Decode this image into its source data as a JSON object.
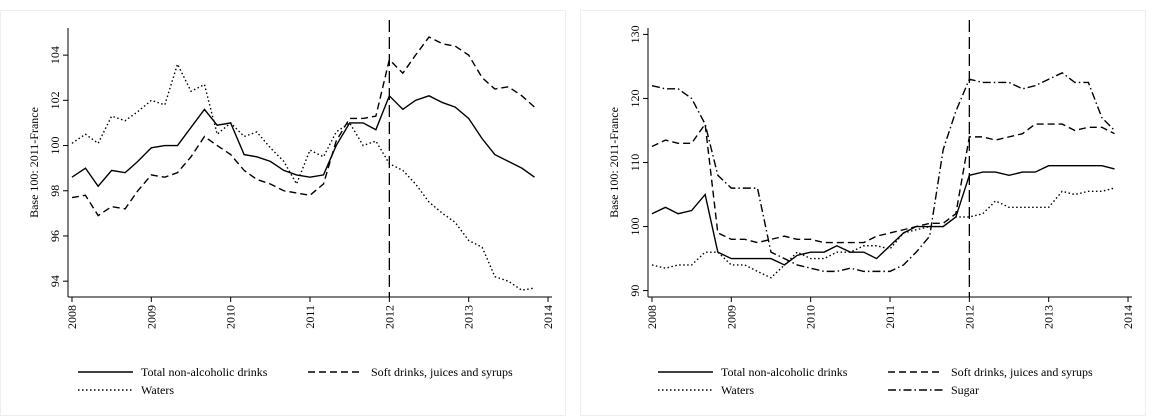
{
  "chart_data": [
    {
      "type": "line",
      "ylabel": "Base 100: 2011-France",
      "x": [
        2008,
        2008.17,
        2008.33,
        2008.5,
        2008.67,
        2008.83,
        2009,
        2009.17,
        2009.33,
        2009.5,
        2009.67,
        2009.83,
        2010,
        2010.17,
        2010.33,
        2010.5,
        2010.67,
        2010.83,
        2011,
        2011.17,
        2011.33,
        2011.5,
        2011.67,
        2011.83,
        2012,
        2012.17,
        2012.33,
        2012.5,
        2012.67,
        2012.83,
        2013,
        2013.17,
        2013.33,
        2013.5,
        2013.67,
        2013.83
      ],
      "xlim": [
        2007.95,
        2014.05
      ],
      "xticks": [
        2008,
        2009,
        2010,
        2011,
        2012,
        2013,
        2014
      ],
      "ylim": [
        93.3,
        105.2
      ],
      "yticks": [
        94,
        96,
        98,
        100,
        102,
        104
      ],
      "vline": 2012,
      "series": [
        {
          "name": "Total non-alcoholic drinks",
          "color": "#000000",
          "style": "solid",
          "values": [
            98.6,
            99.0,
            98.2,
            98.9,
            98.8,
            99.3,
            99.9,
            100.0,
            100.0,
            100.8,
            101.6,
            100.9,
            101.0,
            99.6,
            99.5,
            99.3,
            98.9,
            98.7,
            98.6,
            98.7,
            100.0,
            101.0,
            101.0,
            100.7,
            102.2,
            101.6,
            102.0,
            102.2,
            101.9,
            101.7,
            101.2,
            100.3,
            99.6,
            99.3,
            99.0,
            98.6
          ]
        },
        {
          "name": "Soft drinks, juices and syrups",
          "color": "#000000",
          "style": "dashed",
          "values": [
            97.7,
            97.8,
            96.9,
            97.3,
            97.2,
            98.0,
            98.7,
            98.6,
            98.8,
            99.5,
            100.4,
            100.0,
            99.6,
            98.9,
            98.5,
            98.3,
            98.0,
            97.9,
            97.8,
            98.3,
            100.2,
            101.2,
            101.2,
            101.3,
            103.8,
            103.2,
            104.0,
            104.8,
            104.5,
            104.4,
            104.0,
            103.0,
            102.5,
            102.6,
            102.2,
            101.7
          ]
        },
        {
          "name": "Waters",
          "color": "#000000",
          "style": "dotted",
          "values": [
            100.1,
            100.5,
            100.1,
            101.3,
            101.1,
            101.5,
            102.0,
            101.8,
            103.6,
            102.4,
            102.7,
            100.5,
            101.0,
            100.4,
            100.6,
            99.9,
            99.3,
            98.3,
            99.8,
            99.5,
            100.6,
            101.0,
            100.0,
            100.2,
            99.2,
            98.9,
            98.3,
            97.5,
            97.0,
            96.6,
            95.8,
            95.5,
            94.2,
            94.0,
            93.6,
            93.7
          ]
        }
      ]
    },
    {
      "type": "line",
      "ylabel": "Base 100: 2011-France",
      "x": [
        2008,
        2008.17,
        2008.33,
        2008.5,
        2008.67,
        2008.83,
        2009,
        2009.17,
        2009.33,
        2009.5,
        2009.67,
        2009.83,
        2010,
        2010.17,
        2010.33,
        2010.5,
        2010.67,
        2010.83,
        2011,
        2011.17,
        2011.33,
        2011.5,
        2011.67,
        2011.83,
        2012,
        2012.17,
        2012.33,
        2012.5,
        2012.67,
        2012.83,
        2013,
        2013.17,
        2013.33,
        2013.5,
        2013.67,
        2013.83
      ],
      "xlim": [
        2007.95,
        2014.05
      ],
      "xticks": [
        2008,
        2009,
        2010,
        2011,
        2012,
        2013,
        2014
      ],
      "ylim": [
        89,
        131
      ],
      "yticks": [
        90,
        100,
        110,
        120,
        130
      ],
      "vline": 2012,
      "series": [
        {
          "name": "Total non-alcoholic drinks",
          "color": "#000000",
          "style": "solid",
          "values": [
            102,
            103,
            102,
            102.5,
            105,
            96,
            95,
            95,
            95,
            95,
            94,
            95.5,
            96,
            96,
            97,
            96,
            96,
            95,
            97,
            99,
            100,
            100,
            100,
            101.5,
            108,
            108.5,
            108.5,
            108,
            108.5,
            108.5,
            109.5,
            109.5,
            109.5,
            109.5,
            109.5,
            109
          ]
        },
        {
          "name": "Soft drinks, juices and syrups",
          "color": "#000000",
          "style": "dashed",
          "values": [
            112.5,
            113.5,
            113,
            113,
            116,
            99,
            98,
            98,
            97.5,
            98,
            98.5,
            98,
            98,
            97.5,
            97.5,
            97.5,
            97.5,
            98.5,
            99,
            99.5,
            100,
            100.5,
            100.5,
            102,
            114,
            114,
            113.5,
            114,
            114.5,
            116,
            116,
            116,
            115,
            115.5,
            115.5,
            114.5
          ]
        },
        {
          "name": "Waters",
          "color": "#000000",
          "style": "dotted",
          "values": [
            94,
            93.5,
            94,
            94,
            96,
            96,
            94,
            94,
            93,
            92,
            94,
            96,
            95,
            95,
            96,
            96,
            97,
            97,
            96.5,
            99,
            99.5,
            100,
            100,
            101.5,
            101.5,
            102,
            104,
            103,
            103,
            103,
            103,
            105.5,
            105,
            105.5,
            105.5,
            106
          ]
        },
        {
          "name": "Sugar",
          "color": "#000000",
          "style": "dashdot",
          "values": [
            122,
            121.5,
            121.5,
            120,
            116,
            108,
            106,
            106,
            106,
            96,
            95,
            94,
            93.5,
            93,
            93,
            93.5,
            93,
            93,
            93,
            94,
            96,
            98.5,
            112,
            118,
            123,
            122.5,
            122.5,
            122.5,
            121.5,
            122,
            123,
            124,
            122.5,
            122.5,
            117,
            115
          ]
        }
      ]
    }
  ]
}
